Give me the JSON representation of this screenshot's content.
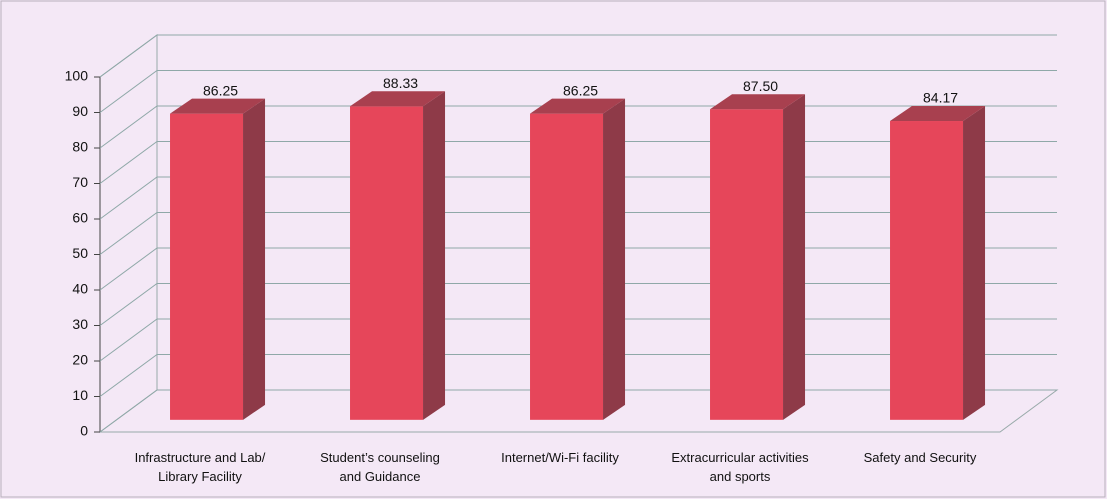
{
  "chart_data": {
    "type": "bar3d",
    "categories": [
      "Infrastructure and Lab/ Library Facility",
      "Student’s counseling and Guidance",
      "Internet/Wi-Fi facility",
      "Extracurricular activities and sports",
      "Safety and Security"
    ],
    "values": [
      86.25,
      88.33,
      86.25,
      87.5,
      84.17
    ],
    "value_labels": [
      "86.25",
      "88.33",
      "86.25",
      "87.50",
      "84.17"
    ],
    "color": "#e0405a",
    "ylim": [
      0,
      100
    ],
    "yticks": [
      0,
      10,
      20,
      30,
      40,
      50,
      60,
      70,
      80,
      90,
      100
    ],
    "grid": true
  }
}
